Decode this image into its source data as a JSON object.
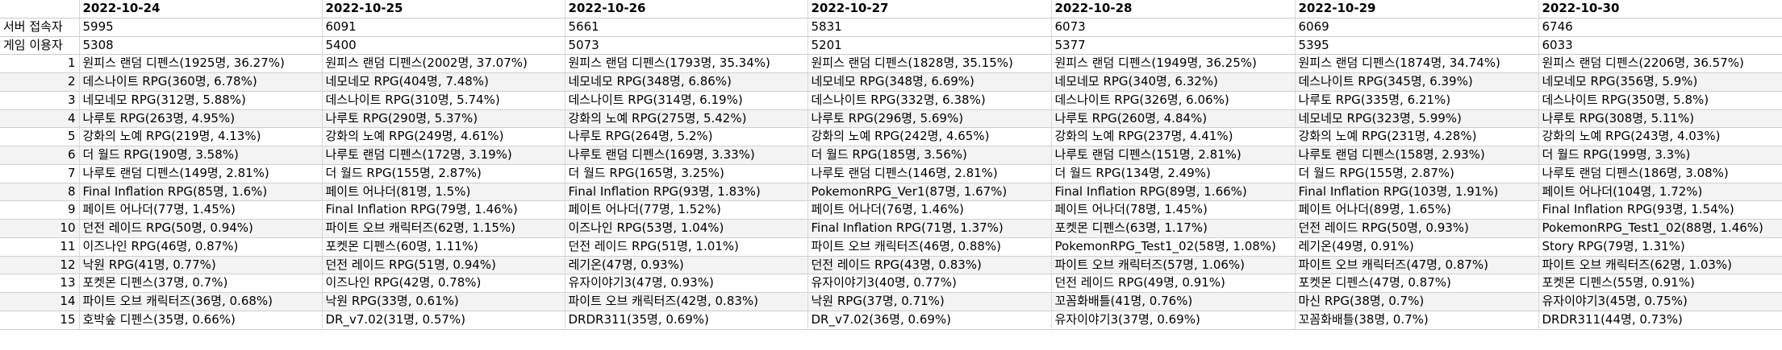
{
  "header": {
    "dates": [
      "2022-10-24",
      "2022-10-25",
      "2022-10-26",
      "2022-10-27",
      "2022-10-28",
      "2022-10-29",
      "2022-10-30"
    ]
  },
  "stats": [
    {
      "label": "서버 접속자",
      "values": [
        "5995",
        "6091",
        "5661",
        "5831",
        "6073",
        "6069",
        "6746"
      ]
    },
    {
      "label": "게임 이용자",
      "values": [
        "5308",
        "5400",
        "5073",
        "5201",
        "5377",
        "5395",
        "6033"
      ]
    }
  ],
  "ranks": [
    {
      "rank": "1",
      "cells": [
        "원피스 랜덤 디펜스(1925명, 36.27%)",
        "원피스 랜덤 디펜스(2002명, 37.07%)",
        "원피스 랜덤 디펜스(1793명, 35.34%)",
        "원피스 랜덤 디펜스(1828명, 35.15%)",
        "원피스 랜덤 디펜스(1949명, 36.25%)",
        "원피스 랜덤 디펜스(1874명, 34.74%)",
        "원피스 랜덤 디펜스(2206명, 36.57%)"
      ]
    },
    {
      "rank": "2",
      "cells": [
        "데스나이트 RPG(360명, 6.78%)",
        "네모네모 RPG(404명, 7.48%)",
        "네모네모 RPG(348명, 6.86%)",
        "네모네모 RPG(348명, 6.69%)",
        "네모네모 RPG(340명, 6.32%)",
        "데스나이트 RPG(345명, 6.39%)",
        "네모네모 RPG(356명, 5.9%)"
      ]
    },
    {
      "rank": "3",
      "cells": [
        "네모네모 RPG(312명, 5.88%)",
        "데스나이트 RPG(310명, 5.74%)",
        "데스나이트 RPG(314명, 6.19%)",
        "데스나이트 RPG(332명, 6.38%)",
        "데스나이트 RPG(326명, 6.06%)",
        "나루토 RPG(335명, 6.21%)",
        "데스나이트 RPG(350명, 5.8%)"
      ]
    },
    {
      "rank": "4",
      "cells": [
        "나루토 RPG(263명, 4.95%)",
        "나루토 RPG(290명, 5.37%)",
        "강화의 노예 RPG(275명, 5.42%)",
        "나루토 RPG(296명, 5.69%)",
        "나루토 RPG(260명, 4.84%)",
        "네모네모 RPG(323명, 5.99%)",
        "나루토 RPG(308명, 5.11%)"
      ]
    },
    {
      "rank": "5",
      "cells": [
        "강화의 노예 RPG(219명, 4.13%)",
        "강화의 노예 RPG(249명, 4.61%)",
        "나루토 RPG(264명, 5.2%)",
        "강화의 노예 RPG(242명, 4.65%)",
        "강화의 노예 RPG(237명, 4.41%)",
        "강화의 노예 RPG(231명, 4.28%)",
        "강화의 노예 RPG(243명, 4.03%)"
      ]
    },
    {
      "rank": "6",
      "cells": [
        "더 월드 RPG(190명, 3.58%)",
        "나루토 랜덤 디펜스(172명, 3.19%)",
        "나루토 랜덤 디펜스(169명, 3.33%)",
        "더 월드 RPG(185명, 3.56%)",
        "나루토 랜덤 디펜스(151명, 2.81%)",
        "나루토 랜덤 디펜스(158명, 2.93%)",
        "더 월드 RPG(199명, 3.3%)"
      ]
    },
    {
      "rank": "7",
      "cells": [
        "나루토 랜덤 디펜스(149명, 2.81%)",
        "더 월드 RPG(155명, 2.87%)",
        "더 월드 RPG(165명, 3.25%)",
        "나루토 랜덤 디펜스(146명, 2.81%)",
        "더 월드 RPG(134명, 2.49%)",
        "더 월드 RPG(155명, 2.87%)",
        "나루토 랜덤 디펜스(186명, 3.08%)"
      ]
    },
    {
      "rank": "8",
      "cells": [
        "Final Inflation RPG(85명, 1.6%)",
        "페이트 어나더(81명, 1.5%)",
        "Final Inflation RPG(93명, 1.83%)",
        "PokemonRPG_Ver1(87명, 1.67%)",
        "Final Inflation RPG(89명, 1.66%)",
        "Final Inflation RPG(103명, 1.91%)",
        "페이트 어나더(104명, 1.72%)"
      ]
    },
    {
      "rank": "9",
      "cells": [
        "페이트 어나더(77명, 1.45%)",
        "Final Inflation RPG(79명, 1.46%)",
        "페이트 어나더(77명, 1.52%)",
        "페이트 어나더(76명, 1.46%)",
        "페이트 어나더(78명, 1.45%)",
        "페이트 어나더(89명, 1.65%)",
        "Final Inflation RPG(93명, 1.54%)"
      ]
    },
    {
      "rank": "10",
      "cells": [
        "던전 레이드 RPG(50명, 0.94%)",
        "파이트 오브 캐릭터즈(62명, 1.15%)",
        "이즈나인 RPG(53명, 1.04%)",
        "Final Inflation RPG(71명, 1.37%)",
        "포켓몬 디펜스(63명, 1.17%)",
        "던전 레이드 RPG(50명, 0.93%)",
        "PokemonRPG_Test1_02(88명, 1.46%)"
      ]
    },
    {
      "rank": "11",
      "cells": [
        "이즈나인 RPG(46명, 0.87%)",
        "포켓몬 디펜스(60명, 1.11%)",
        "던전 레이드 RPG(51명, 1.01%)",
        "파이트 오브 캐릭터즈(46명, 0.88%)",
        "PokemonRPG_Test1_02(58명, 1.08%)",
        "레기온(49명, 0.91%)",
        "Story RPG(79명, 1.31%)"
      ]
    },
    {
      "rank": "12",
      "cells": [
        "낙원 RPG(41명, 0.77%)",
        "던전 레이드 RPG(51명, 0.94%)",
        "레기온(47명, 0.93%)",
        "던전 레이드 RPG(43명, 0.83%)",
        "파이트 오브 캐릭터즈(57명, 1.06%)",
        "파이트 오브 캐릭터즈(47명, 0.87%)",
        "파이트 오브 캐릭터즈(62명, 1.03%)"
      ]
    },
    {
      "rank": "13",
      "cells": [
        "포켓몬 디펜스(37명, 0.7%)",
        "이즈나인 RPG(42명, 0.78%)",
        "유자이야기3(47명, 0.93%)",
        "유자이야기3(40명, 0.77%)",
        "던전 레이드 RPG(49명, 0.91%)",
        "포켓몬 디펜스(47명, 0.87%)",
        "포켓몬 디펜스(55명, 0.91%)"
      ]
    },
    {
      "rank": "14",
      "cells": [
        "파이트 오브 캐릭터즈(36명, 0.68%)",
        "낙원 RPG(33명, 0.61%)",
        "파이트 오브 캐릭터즈(42명, 0.83%)",
        "낙원 RPG(37명, 0.71%)",
        "꼬꼼화배틀(41명, 0.76%)",
        "마신 RPG(38명, 0.7%)",
        "유자이야기3(45명, 0.75%)"
      ]
    },
    {
      "rank": "15",
      "cells": [
        "호박숲 디펜스(35명, 0.66%)",
        "DR_v7.02(31명, 0.57%)",
        "DRDR311(35명, 0.69%)",
        "DR_v7.02(36명, 0.69%)",
        "유자이야기3(37명, 0.69%)",
        "꼬꼼화배틀(38명, 0.7%)",
        "DRDR311(44명, 0.73%)"
      ]
    }
  ]
}
